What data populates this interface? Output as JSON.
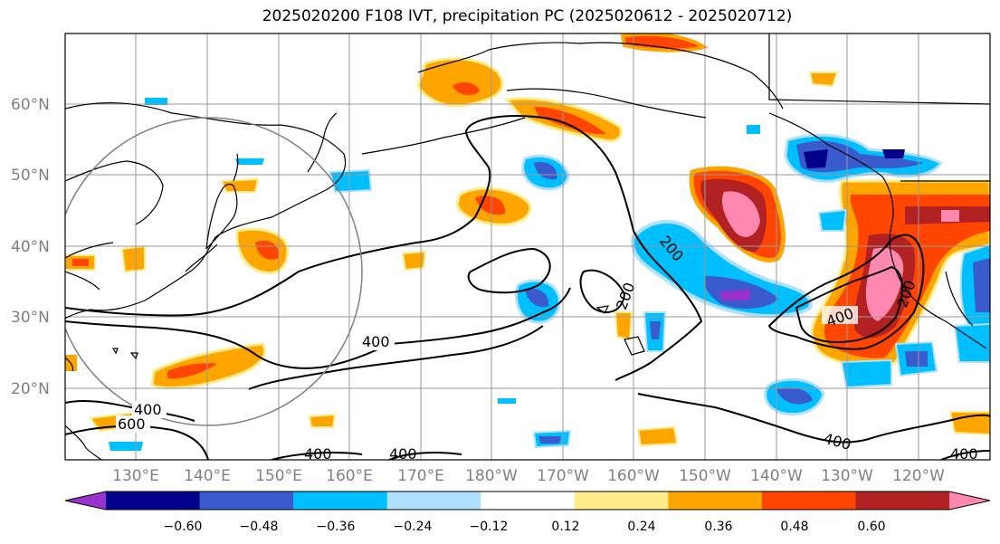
{
  "title": "2025020200 F108 IVT, precipitation PC (2025020612 - 2025020712)",
  "lat_labels": [
    "60°N",
    "50°N",
    "40°N",
    "30°N",
    "20°N"
  ],
  "lon_labels": [
    "130°E",
    "140°E",
    "150°E",
    "160°E",
    "170°E",
    "180°W",
    "170°W",
    "160°W",
    "150°W",
    "140°W",
    "130°W",
    "120°W"
  ],
  "contour_labels": [
    "400",
    "200",
    "200",
    "400",
    "200",
    "400",
    "600",
    "400",
    "400",
    "400",
    "400"
  ],
  "colorbar": {
    "ticks": [
      "−0.60",
      "−0.48",
      "−0.36",
      "−0.24",
      "−0.12",
      "0.12",
      "0.24",
      "0.36",
      "0.48",
      "0.60"
    ],
    "colors": [
      "#9932cc",
      "#00008b",
      "#3a5bcd",
      "#00bfff",
      "#b0e0ff",
      "#ffffff",
      "#ffec8b",
      "#ffa500",
      "#ff4500",
      "#b22222",
      "#ff88b0"
    ]
  }
}
